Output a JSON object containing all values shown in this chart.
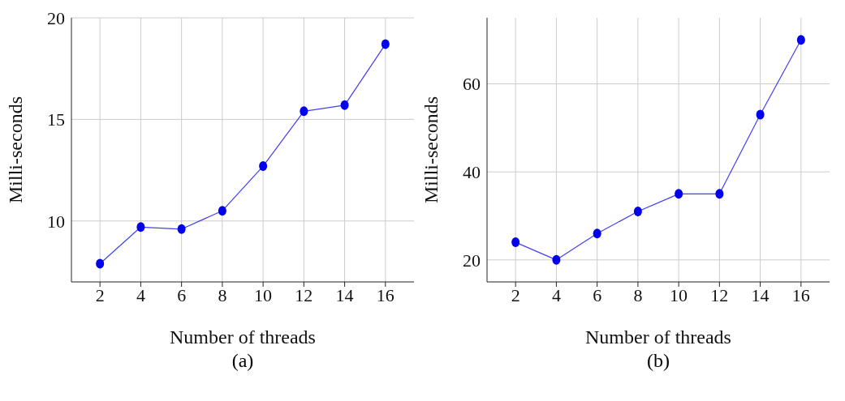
{
  "chart_data": [
    {
      "type": "line",
      "xlabel": "Number of threads",
      "ylabel": "Milli-seconds",
      "x": [
        2,
        4,
        6,
        8,
        10,
        12,
        14,
        16
      ],
      "series": [
        {
          "color": "#0000ee",
          "values": [
            7.9,
            9.7,
            9.6,
            10.5,
            12.7,
            15.4,
            15.7,
            18.7
          ]
        }
      ],
      "xlim": [
        0.6,
        17.4
      ],
      "xticks": [
        2,
        4,
        6,
        8,
        10,
        12,
        14,
        16
      ],
      "ylim": [
        7,
        20
      ],
      "yticks": [
        10,
        15,
        20
      ],
      "grid": true,
      "marker": "circle",
      "line_style": "solid",
      "annotations": [
        "(a)"
      ]
    },
    {
      "type": "line",
      "xlabel": "Number of threads",
      "ylabel": "Milli-seconds",
      "x": [
        2,
        4,
        6,
        8,
        10,
        12,
        14,
        16
      ],
      "series": [
        {
          "color": "#0000ee",
          "values": [
            24,
            20,
            26,
            31,
            35,
            35,
            53,
            70
          ]
        }
      ],
      "xlim": [
        0.6,
        17.4
      ],
      "xticks": [
        2,
        4,
        6,
        8,
        10,
        12,
        14,
        16
      ],
      "ylim": [
        15,
        75
      ],
      "yticks": [
        20,
        40,
        60
      ],
      "grid": true,
      "marker": "circle",
      "line_style": "solid",
      "annotations": [
        "(b)"
      ]
    }
  ]
}
